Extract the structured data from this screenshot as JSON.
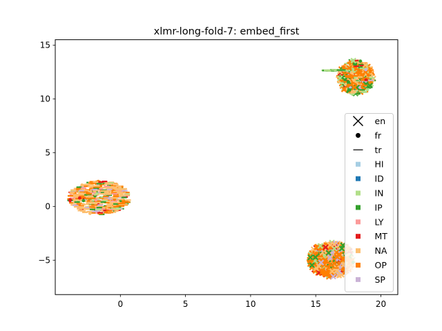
{
  "chart_data": {
    "type": "scatter",
    "title": "xlmr-long-fold-7: embed_first",
    "xlabel": "",
    "ylabel": "",
    "xlim": [
      -5,
      21.3
    ],
    "ylim": [
      -8.2,
      15.5
    ],
    "xticks": [
      0,
      5,
      10,
      15,
      20
    ],
    "yticks": [
      -5,
      0,
      5,
      10,
      15
    ],
    "grid": false,
    "legend_position": "right",
    "marker_legend": [
      {
        "label": "en",
        "marker": "x"
      },
      {
        "label": "fr",
        "marker": "dot"
      },
      {
        "label": "tr",
        "marker": "line"
      }
    ],
    "series": [
      {
        "name": "HI",
        "color": "#a6cee3"
      },
      {
        "name": "ID",
        "color": "#1f78b4"
      },
      {
        "name": "IN",
        "color": "#b2df8a"
      },
      {
        "name": "IP",
        "color": "#33a02c"
      },
      {
        "name": "LY",
        "color": "#fb9a99"
      },
      {
        "name": "MT",
        "color": "#e31a1c"
      },
      {
        "name": "NA",
        "color": "#fdbf6f"
      },
      {
        "name": "OP",
        "color": "#ff7f00"
      },
      {
        "name": "SP",
        "color": "#cab2d6"
      }
    ],
    "clusters": [
      {
        "center": [
          18.1,
          12.0
        ],
        "rx": 1.35,
        "ry": 1.6,
        "count": 420,
        "mix": {
          "OP": 0.45,
          "IP": 0.22,
          "IN": 0.12,
          "NA": 0.15,
          "MT": 0.03,
          "SP": 0.03
        },
        "markers": {
          "x": 0.2,
          "dot": 0.3,
          "line": 0.5
        }
      },
      {
        "center": [
          16.5,
          12.65
        ],
        "rx": 0.9,
        "ry": 0.06,
        "count": 40,
        "mix": {
          "IN": 0.7,
          "IP": 0.3
        },
        "markers": {
          "line": 1.0
        }
      },
      {
        "center": [
          -1.6,
          0.8
        ],
        "rx": 2.3,
        "ry": 1.55,
        "count": 480,
        "mix": {
          "NA": 0.45,
          "OP": 0.22,
          "IP": 0.1,
          "IN": 0.06,
          "MT": 0.07,
          "LY": 0.05,
          "SP": 0.05
        },
        "markers": {
          "line": 0.9,
          "dot": 0.1
        }
      },
      {
        "center": [
          16.2,
          -4.95
        ],
        "rx": 1.7,
        "ry": 1.6,
        "count": 520,
        "mix": {
          "OP": 0.42,
          "NA": 0.22,
          "SP": 0.12,
          "IN": 0.12,
          "IP": 0.07,
          "MT": 0.05
        },
        "markers": {
          "x": 0.8,
          "dot": 0.15,
          "line": 0.05
        }
      }
    ]
  }
}
